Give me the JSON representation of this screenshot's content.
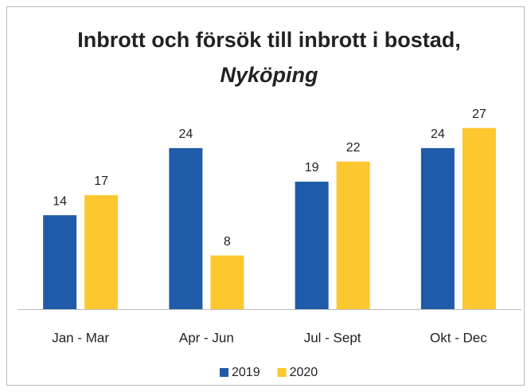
{
  "chart_data": {
    "type": "bar",
    "title": "Inbrott och försök till inbrott i bostad,",
    "subtitle": "Nyköping",
    "categories": [
      "Jan - Mar",
      "Apr - Jun",
      "Jul - Sept",
      "Okt - Dec"
    ],
    "series": [
      {
        "name": "2019",
        "color": "#1f5ba8",
        "values": [
          14,
          24,
          19,
          24
        ]
      },
      {
        "name": "2020",
        "color": "#fdc82f",
        "values": [
          17,
          8,
          22,
          27
        ]
      }
    ],
    "legend": "bottom"
  }
}
